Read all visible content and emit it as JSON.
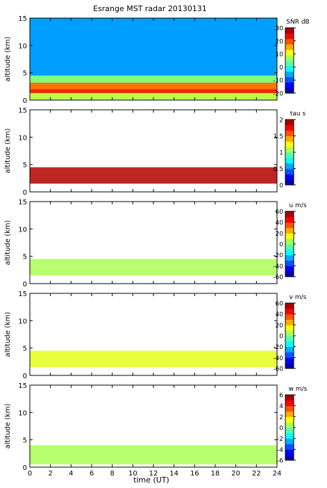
{
  "title": "Esrange MST radar 20130131",
  "xlabel": "time (UT)",
  "x_ticks": [
    "0",
    "2",
    "4",
    "6",
    "8",
    "10",
    "12",
    "14",
    "16",
    "18",
    "20",
    "22",
    "24"
  ],
  "y_ticks": [
    "0",
    "5",
    "10",
    "15"
  ],
  "chart_data": [
    {
      "type": "heatmap",
      "ylabel": "altitude (km)",
      "xlim": [
        0,
        24
      ],
      "ylim": [
        0,
        15
      ],
      "colorbar": {
        "label": "SNR dB",
        "min": -20,
        "max": 30,
        "ticks": [
          "30",
          "20",
          "10",
          "0",
          "-10",
          "-20"
        ]
      },
      "layers": [
        {
          "alt_min": 0.0,
          "alt_max": 1.3,
          "value": 8
        },
        {
          "alt_min": 1.3,
          "alt_max": 2.0,
          "value": 22
        },
        {
          "alt_min": 2.0,
          "alt_max": 3.2,
          "value": 18
        },
        {
          "alt_min": 3.2,
          "alt_max": 4.5,
          "value": 5
        },
        {
          "alt_min": 4.5,
          "alt_max": 15.0,
          "value": -6
        }
      ]
    },
    {
      "type": "heatmap",
      "ylabel": "altitude (km)",
      "xlim": [
        0,
        24
      ],
      "ylim": [
        0,
        15
      ],
      "colorbar": {
        "label": "tau s",
        "min": 0,
        "max": 2,
        "ticks": [
          "2",
          "1.5",
          "1",
          "0.5",
          "0"
        ]
      },
      "layers": [
        {
          "alt_min": 1.5,
          "alt_max": 4.5,
          "value": 1.9
        }
      ]
    },
    {
      "type": "heatmap",
      "ylabel": "altitude (km)",
      "xlim": [
        0,
        24
      ],
      "ylim": [
        0,
        15
      ],
      "colorbar": {
        "label": "u m/s",
        "min": -60,
        "max": 60,
        "ticks": [
          "60",
          "40",
          "20",
          "0",
          "-20",
          "-40",
          "-60"
        ]
      },
      "layers": [
        {
          "alt_min": 1.5,
          "alt_max": 4.5,
          "value": 5
        }
      ]
    },
    {
      "type": "heatmap",
      "ylabel": "altitude (km)",
      "xlim": [
        0,
        24
      ],
      "ylim": [
        0,
        15
      ],
      "colorbar": {
        "label": "v m/s",
        "min": -60,
        "max": 60,
        "ticks": [
          "60",
          "40",
          "20",
          "0",
          "-20",
          "-40",
          "-60"
        ]
      },
      "layers": [
        {
          "alt_min": 1.5,
          "alt_max": 4.5,
          "value": 12
        }
      ]
    },
    {
      "type": "heatmap",
      "ylabel": "altitude (km)",
      "xlim": [
        0,
        24
      ],
      "ylim": [
        0,
        15
      ],
      "colorbar": {
        "label": "w m/s",
        "min": -6,
        "max": 6,
        "ticks": [
          "6",
          "4",
          "2",
          "0",
          "-2",
          "-4",
          "-6"
        ]
      },
      "layers": [
        {
          "alt_min": 0.5,
          "alt_max": 4.0,
          "value": 0.5
        }
      ]
    }
  ]
}
